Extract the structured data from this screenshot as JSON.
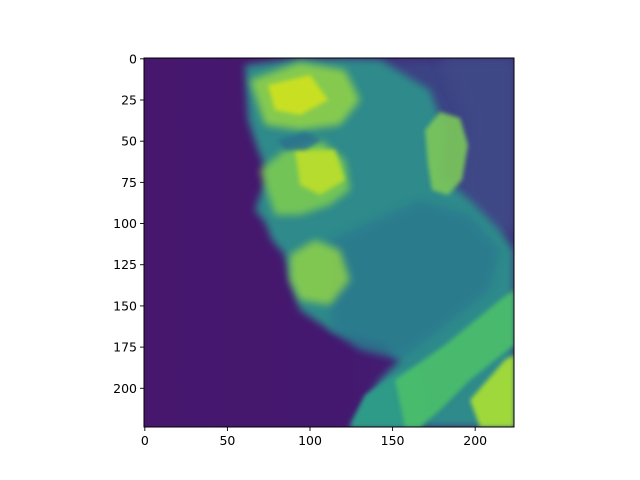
{
  "chart_data": {
    "type": "heatmap",
    "title": "",
    "xlabel": "",
    "ylabel": "",
    "image_width": 224,
    "image_height": 224,
    "xlim": [
      -0.5,
      223.5
    ],
    "ylim": [
      223.5,
      -0.5
    ],
    "origin": "upper",
    "colormap": "viridis",
    "grid": false,
    "content": "grayscale photograph of a man's face in left profile rendered with the viewer colormap",
    "x_ticks": [
      0,
      50,
      100,
      150,
      200
    ],
    "x_tick_labels": [
      "0",
      "50",
      "100",
      "150",
      "200"
    ],
    "y_ticks": [
      0,
      25,
      50,
      75,
      100,
      125,
      150,
      175,
      200
    ],
    "y_tick_labels": [
      "0",
      "25",
      "50",
      "75",
      "100",
      "125",
      "150",
      "175",
      "200"
    ],
    "colors": {
      "background_low": "#45166c",
      "mid": "#2b8a8c",
      "high": "#b8de29",
      "peak": "#dce31d"
    }
  }
}
